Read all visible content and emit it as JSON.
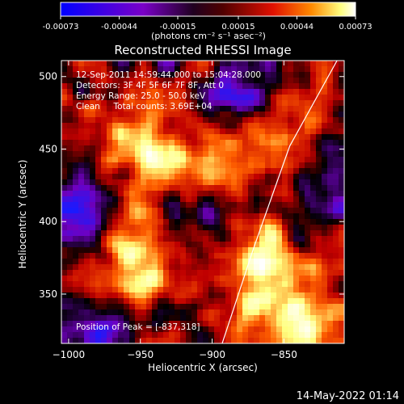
{
  "chart_data": {
    "type": "heatmap",
    "title": "Reconstructed RHESSI Image",
    "xlabel": "Heliocentric X (arcsec)",
    "ylabel": "Heliocentric Y (arcsec)",
    "xlim": [
      -1005,
      -808
    ],
    "ylim": [
      316,
      511
    ],
    "xticks": [
      -1000,
      -950,
      -900,
      -850
    ],
    "yticks": [
      350,
      400,
      450,
      500
    ],
    "colorbar": {
      "min": -0.00073,
      "max": 0.00073,
      "ticks": [
        "-0.00073",
        "-0.00044",
        "-0.00015",
        "0.00015",
        "0.00044",
        "0.00073"
      ],
      "unit_label": "(photons cm⁻² s⁻¹ asec⁻²)"
    },
    "annotations": [
      "12-Sep-2011 14:59:44.000 to 15:04:28.000",
      "Detectors: 3F 4F 5F 6F 7F 8F, Att 0",
      "Energy Range: 25.0 - 50.0 keV",
      "Clean     Total counts: 3.69E+04"
    ],
    "peak_label": "Position of Peak = [-837,318]",
    "limb": {
      "description_points": [
        [
          -893,
          316
        ],
        [
          -871,
          382
        ],
        [
          -846,
          452
        ],
        [
          -813,
          511
        ]
      ]
    },
    "grid": false,
    "colormap": [
      "#1a1aff",
      "#7000c0",
      "#000000",
      "#c00000",
      "#ff6000",
      "#ffff80",
      "#ffffff"
    ]
  },
  "footer": {
    "timestamp": "14-May-2022 01:14"
  }
}
